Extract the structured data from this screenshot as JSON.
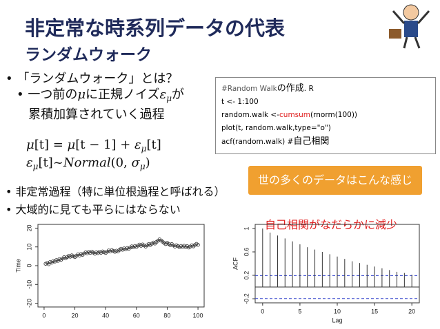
{
  "slide": {
    "title": "非定常な時系列データの代表",
    "subtitle": "ランダムウォーク",
    "bullet1": "「ランダムウォーク」とは？",
    "bullet1_sub": [
      "一つ前の",
      "μ",
      "に正規ノイズ",
      "ε",
      "μ",
      "が",
      "累積加算されていく過程"
    ],
    "formula1": [
      "μ",
      "[t] = ",
      "μ",
      "[t − 1] + ",
      "ε",
      "μ",
      "[t]"
    ],
    "formula2": [
      "ε",
      "μ",
      "[t]~",
      "Normal",
      "(0, ",
      "σ",
      "μ",
      ")"
    ],
    "bullet2": "非定常過程（特に単位根過程と呼ばれる）",
    "bullet3": "大域的に見ても平らにはならない",
    "code": {
      "line1": [
        "#Random Walk",
        "の作成",
        ". R"
      ],
      "line2": "t <- 1:100",
      "line3": [
        "random.walk <-",
        "cumsum",
        "(rnorm(100))"
      ],
      "line4": "plot(t, random.walk,type=\"o\")",
      "line5": [
        "acf(random.walk) #",
        "自己相関"
      ]
    },
    "callout": "世の多くのデータはこんな感じ",
    "note": "自己相関がなだらかに減少"
  },
  "chart_data": [
    {
      "type": "scatter-line",
      "ylabel": "Time",
      "x": [
        1,
        2,
        3,
        4,
        5,
        6,
        7,
        8,
        9,
        10,
        11,
        12,
        13,
        14,
        15,
        16,
        17,
        18,
        19,
        20,
        21,
        22,
        23,
        24,
        25,
        26,
        27,
        28,
        29,
        30,
        31,
        32,
        33,
        34,
        35,
        36,
        37,
        38,
        39,
        40,
        41,
        42,
        43,
        44,
        45,
        46,
        47,
        48,
        49,
        50,
        51,
        52,
        53,
        54,
        55,
        56,
        57,
        58,
        59,
        60,
        61,
        62,
        63,
        64,
        65,
        66,
        67,
        68,
        69,
        70,
        71,
        72,
        73,
        74,
        75,
        76,
        77,
        78,
        79,
        80,
        81,
        82,
        83,
        84,
        85,
        86,
        87,
        88,
        89,
        90,
        91,
        92,
        93,
        94,
        95,
        96,
        97,
        98,
        99,
        100
      ],
      "values": [
        1,
        1.5,
        0.8,
        2,
        1.6,
        2.5,
        2.2,
        3,
        2.6,
        3.5,
        3.1,
        3.8,
        4.5,
        3.9,
        4.6,
        5.2,
        4.8,
        5.5,
        5,
        4.6,
        5.3,
        6,
        5.4,
        6.2,
        5.8,
        6.5,
        7.1,
        6.6,
        7.3,
        6.8,
        7.5,
        7,
        6.4,
        7.1,
        6.7,
        7.4,
        6.9,
        7.6,
        7.2,
        6.8,
        7.5,
        8.1,
        7.6,
        8.3,
        7.9,
        7.4,
        8,
        7.6,
        8.4,
        9,
        8.5,
        9.2,
        8.7,
        9.4,
        9,
        9.7,
        10.3,
        9.8,
        10.5,
        10,
        10.7,
        11.2,
        10.6,
        11.3,
        10.8,
        10.2,
        10.9,
        11.5,
        11,
        11.7,
        12.3,
        11.8,
        12.6,
        13.3,
        14,
        13.4,
        12.8,
        12.1,
        11.5,
        12.2,
        11.6,
        10.9,
        11.5,
        10.8,
        10.2,
        10.9,
        10.4,
        9.8,
        10.5,
        10,
        10.6,
        9.9,
        10.4,
        9.7,
        10.2,
        10.9,
        10.3,
        11,
        11.6,
        11.1
      ],
      "color": "#333333",
      "xlim": [
        -4,
        104
      ],
      "xticks": [
        0,
        20,
        40,
        60,
        80,
        100
      ],
      "ylim": [
        -22,
        22
      ],
      "yticks": [
        -20,
        -10,
        0,
        10,
        20
      ]
    },
    {
      "type": "acf",
      "xlabel": "Lag",
      "ylabel": "ACF",
      "x": [
        0,
        1,
        2,
        3,
        4,
        5,
        6,
        7,
        8,
        9,
        10,
        11,
        12,
        13,
        14,
        15,
        16,
        17,
        18,
        19,
        20
      ],
      "values": [
        1.0,
        0.93,
        0.88,
        0.83,
        0.78,
        0.73,
        0.68,
        0.64,
        0.6,
        0.56,
        0.52,
        0.48,
        0.44,
        0.41,
        0.38,
        0.35,
        0.32,
        0.29,
        0.26,
        0.24,
        0.21
      ],
      "color": "#333333",
      "ci": 0.196,
      "ci_color": "#3344cc",
      "xlim": [
        -1,
        21
      ],
      "xticks": [
        0,
        5,
        10,
        15,
        20
      ],
      "ylim": [
        -0.27,
        1.07
      ],
      "yticks": [
        -0.2,
        0.2,
        0.6,
        1.0
      ]
    }
  ]
}
